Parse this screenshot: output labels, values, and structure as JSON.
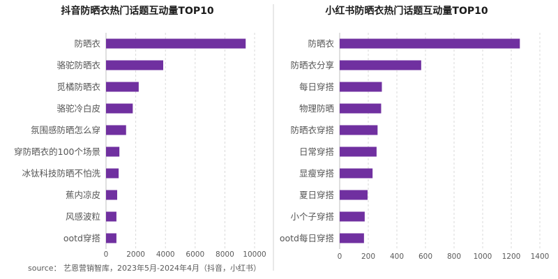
{
  "source_text": "source： 艺恩营销智库，2023年5月-2024年4月（抖音，小红书）",
  "bar_color": "#7030a0",
  "chart_data": [
    {
      "type": "bar",
      "orientation": "horizontal",
      "title": "抖音防晒衣热门话题互动量TOP10",
      "categories": [
        "防晒衣",
        "骆驼防晒衣",
        "觅橘防晒衣",
        "骆驼冷白皮",
        "氛围感防晒怎么穿",
        "穿防晒衣的100个场景",
        "冰钛科技防晒不怕洗",
        "蕉内凉皮",
        "风感波粒",
        "ootd穿搭"
      ],
      "values": [
        9400,
        3850,
        2200,
        1800,
        1350,
        900,
        850,
        750,
        700,
        700
      ],
      "xlim": [
        0,
        10000
      ],
      "xticks": [
        0,
        2000,
        4000,
        6000,
        8000,
        10000
      ],
      "grid": true
    },
    {
      "type": "bar",
      "orientation": "horizontal",
      "title": "小红书防晒衣热门话题互动量TOP10",
      "categories": [
        "防晒衣",
        "防晒衣分享",
        "每日穿搭",
        "物理防晒",
        "防晒衣穿搭",
        "日常穿搭",
        "显瘦穿搭",
        "夏日穿搭",
        "小个子穿搭",
        "ootd每日穿搭"
      ],
      "values": [
        1260,
        570,
        295,
        290,
        265,
        258,
        230,
        195,
        175,
        170
      ],
      "xlim": [
        0,
        1400
      ],
      "xticks": [
        0,
        200,
        400,
        600,
        800,
        1000,
        1200,
        1400
      ],
      "grid": true
    }
  ]
}
